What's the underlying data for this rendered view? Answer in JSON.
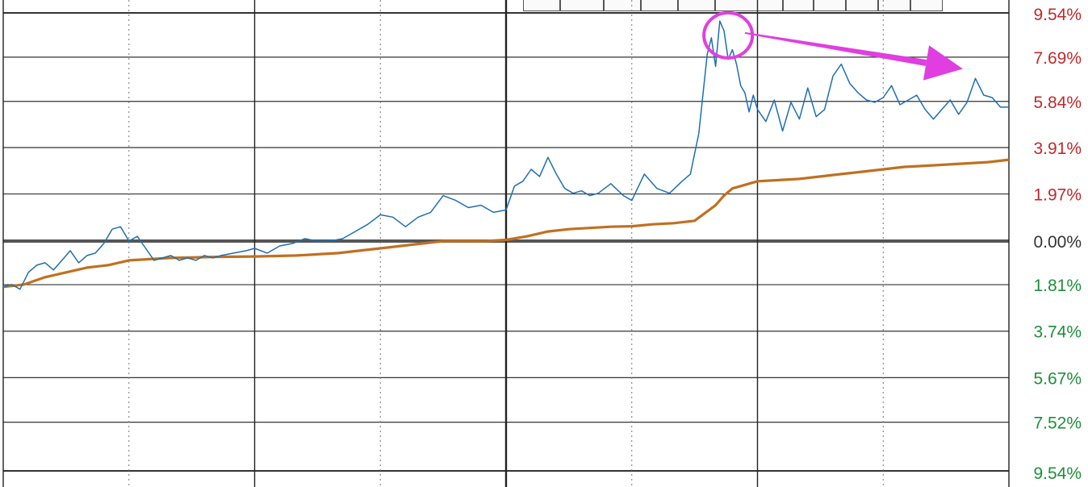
{
  "header": {
    "title_partial": "",
    "legend_partial_1": "",
    "legend_partial_2": ""
  },
  "toolbar": {
    "buttons": [
      "",
      "",
      "",
      "",
      "",
      "",
      "",
      "",
      "",
      "",
      ""
    ]
  },
  "colors": {
    "price_line": "#1f6fb0",
    "avg_line": "#c07020",
    "positive_label": "#c0292b",
    "zero_label": "#333333",
    "negative_label": "#1e8f3a",
    "grid": "#333333",
    "annotation": "#e03ee0"
  },
  "chart_data": {
    "type": "line",
    "title": "",
    "xlabel": "",
    "ylabel": "",
    "ylim": [
      -9.54,
      9.54
    ],
    "y_tick_values": [
      9.54,
      7.69,
      5.84,
      3.91,
      1.97,
      0.0,
      -1.81,
      -3.74,
      -5.67,
      -7.52,
      -9.54
    ],
    "y_tick_labels": [
      "9.54%",
      "7.69%",
      "5.84%",
      "3.91%",
      "1.97%",
      "0.00%",
      "1.81%",
      "3.74%",
      "5.67%",
      "7.52%",
      "9.54%"
    ],
    "x_range": [
      0,
      240
    ],
    "x_sessions": [
      0,
      60,
      120,
      180,
      240
    ],
    "grid": true,
    "series": [
      {
        "x": [
          0,
          2,
          4,
          6,
          8,
          10,
          12,
          14,
          16,
          18,
          20,
          22,
          24,
          26,
          28,
          30,
          32,
          34,
          36,
          38,
          40,
          42,
          44,
          46,
          48,
          50,
          52,
          55,
          58,
          60,
          63,
          66,
          69,
          72,
          75,
          78,
          81,
          84,
          87,
          90,
          93,
          96,
          99,
          102,
          105,
          108,
          111,
          114,
          117,
          120,
          122,
          124,
          126,
          128,
          130,
          132,
          134,
          136,
          138,
          140,
          142,
          145,
          148,
          150,
          153,
          156,
          159,
          162,
          164,
          166,
          168,
          169,
          170,
          171,
          172,
          173,
          174,
          175,
          176,
          177,
          178,
          179,
          180,
          182,
          184,
          186,
          188,
          190,
          192,
          194,
          196,
          198,
          200,
          202,
          204,
          206,
          208,
          210,
          212,
          214,
          216,
          218,
          220,
          222,
          224,
          226,
          228,
          230,
          232,
          234,
          236,
          238,
          240
        ],
        "values": [
          -1.9,
          -1.8,
          -2.0,
          -1.3,
          -1.0,
          -0.9,
          -1.2,
          -0.8,
          -0.4,
          -0.9,
          -0.6,
          -0.5,
          -0.1,
          0.5,
          0.6,
          0.0,
          0.2,
          -0.3,
          -0.8,
          -0.7,
          -0.6,
          -0.8,
          -0.7,
          -0.8,
          -0.6,
          -0.7,
          -0.6,
          -0.5,
          -0.4,
          -0.3,
          -0.5,
          -0.2,
          -0.1,
          0.1,
          0.0,
          0.0,
          0.1,
          0.4,
          0.7,
          1.1,
          1.0,
          0.6,
          1.0,
          1.2,
          1.9,
          1.7,
          1.4,
          1.5,
          1.2,
          1.3,
          2.3,
          2.5,
          3.0,
          2.7,
          3.5,
          2.8,
          2.2,
          2.0,
          2.1,
          1.9,
          2.0,
          2.4,
          1.9,
          1.7,
          2.8,
          2.2,
          2.0,
          2.5,
          2.8,
          4.5,
          7.8,
          8.5,
          7.3,
          9.2,
          8.8,
          7.6,
          8.0,
          7.4,
          6.5,
          6.2,
          5.4,
          6.1,
          5.5,
          5.0,
          5.9,
          4.6,
          5.8,
          5.1,
          6.4,
          5.2,
          5.5,
          6.9,
          7.4,
          6.6,
          6.2,
          5.9,
          5.8,
          6.0,
          6.5,
          5.7,
          5.9,
          6.1,
          5.5,
          5.1,
          5.5,
          5.9,
          5.3,
          5.8,
          6.8,
          6.1,
          6.0,
          5.6,
          5.6
        ],
        "name": ""
      },
      {
        "x": [
          0,
          5,
          10,
          15,
          20,
          25,
          30,
          35,
          40,
          45,
          50,
          55,
          60,
          65,
          70,
          75,
          80,
          85,
          90,
          95,
          100,
          105,
          110,
          115,
          120,
          125,
          130,
          135,
          140,
          145,
          150,
          155,
          160,
          165,
          170,
          172,
          174,
          176,
          178,
          180,
          185,
          190,
          195,
          200,
          205,
          210,
          215,
          220,
          225,
          230,
          235,
          240
        ],
        "values": [
          -1.9,
          -1.8,
          -1.5,
          -1.3,
          -1.1,
          -1.0,
          -0.8,
          -0.75,
          -0.7,
          -0.68,
          -0.66,
          -0.65,
          -0.64,
          -0.62,
          -0.6,
          -0.55,
          -0.5,
          -0.4,
          -0.3,
          -0.2,
          -0.1,
          0.0,
          0.0,
          0.0,
          0.05,
          0.2,
          0.4,
          0.5,
          0.55,
          0.6,
          0.62,
          0.7,
          0.75,
          0.85,
          1.5,
          1.9,
          2.2,
          2.3,
          2.4,
          2.5,
          2.55,
          2.6,
          2.7,
          2.8,
          2.9,
          3.0,
          3.1,
          3.15,
          3.2,
          3.25,
          3.3,
          3.4
        ],
        "name": ""
      }
    ],
    "annotations": [
      {
        "type": "circle",
        "x": 173,
        "y": 8.6
      },
      {
        "type": "arrow",
        "from": [
          177,
          8.7
        ],
        "to": [
          229,
          7.2
        ]
      }
    ]
  }
}
